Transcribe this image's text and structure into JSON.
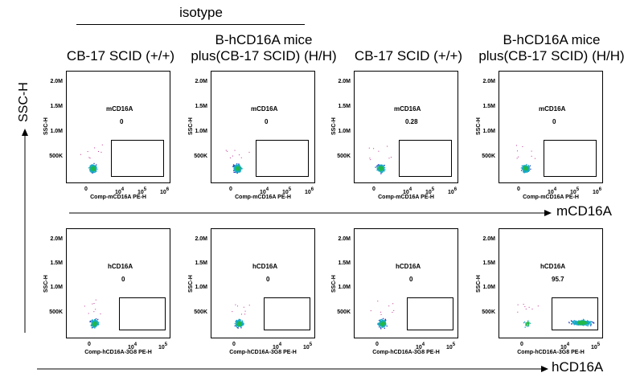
{
  "header": {
    "isotype_label": "isotype",
    "columns": [
      {
        "line1": "",
        "line2": "CB-17 SCID (+/+)"
      },
      {
        "line1": "B-hCD16A mice",
        "line2": "plus(CB-17 SCID)  (H/H)"
      },
      {
        "line1": "",
        "line2": "CB-17 SCID (+/+)"
      },
      {
        "line1": "B-hCD16A mice",
        "line2": "plus(CB-17 SCID)  (H/H)"
      }
    ]
  },
  "axes": {
    "y_title": "SSC-H",
    "row1_x_title": "mCD16A",
    "row2_x_title": "hCD16A"
  },
  "chart_data": [
    {
      "type": "scatter",
      "row": 1,
      "col": 1,
      "gate_name": "mCD16A",
      "gate_value": "0",
      "xlabel": "Comp-mCD16A PE-H",
      "ylabel": "SSC-H",
      "y_ticks": [
        "500K",
        "1.0M",
        "1.5M",
        "2.0M"
      ],
      "x_ticks": [
        {
          "b": "0",
          "e": ""
        },
        {
          "b": "10",
          "e": "4"
        },
        {
          "b": "10",
          "e": "5"
        },
        {
          "b": "10",
          "e": "6"
        }
      ],
      "gate_percent": 0
    },
    {
      "type": "scatter",
      "row": 1,
      "col": 2,
      "gate_name": "mCD16A",
      "gate_value": "0",
      "xlabel": "Comp-mCD16A PE-H",
      "ylabel": "SSC-H",
      "y_ticks": [
        "500K",
        "1.0M",
        "1.5M",
        "2.0M"
      ],
      "x_ticks": [
        {
          "b": "0",
          "e": ""
        },
        {
          "b": "10",
          "e": "4"
        },
        {
          "b": "10",
          "e": "5"
        },
        {
          "b": "10",
          "e": "6"
        }
      ],
      "gate_percent": 0
    },
    {
      "type": "scatter",
      "row": 1,
      "col": 3,
      "gate_name": "mCD16A",
      "gate_value": "0.28",
      "xlabel": "Comp-mCD16A PE-H",
      "ylabel": "SSC-H",
      "y_ticks": [
        "500K",
        "1.0M",
        "1.5M",
        "2.0M"
      ],
      "x_ticks": [
        {
          "b": "0",
          "e": ""
        },
        {
          "b": "10",
          "e": "4"
        },
        {
          "b": "10",
          "e": "5"
        },
        {
          "b": "10",
          "e": "6"
        }
      ],
      "gate_percent": 0.28
    },
    {
      "type": "scatter",
      "row": 1,
      "col": 4,
      "gate_name": "mCD16A",
      "gate_value": "0",
      "xlabel": "Comp-mCD16A PE-H",
      "ylabel": "SSC-H",
      "y_ticks": [
        "500K",
        "1.0M",
        "1.5M",
        "2.0M"
      ],
      "x_ticks": [
        {
          "b": "0",
          "e": ""
        },
        {
          "b": "10",
          "e": "4"
        },
        {
          "b": "10",
          "e": "5"
        },
        {
          "b": "10",
          "e": "6"
        }
      ],
      "gate_percent": 0
    },
    {
      "type": "scatter",
      "row": 2,
      "col": 1,
      "gate_name": "hCD16A",
      "gate_value": "0",
      "xlabel": "Comp-hCD16A-3G8 PE-H",
      "ylabel": "SSC-H",
      "y_ticks": [
        "500K",
        "1.0M",
        "1.5M",
        "2.0M"
      ],
      "x_ticks": [
        {
          "b": "0",
          "e": ""
        },
        {
          "b": "10",
          "e": "4"
        },
        {
          "b": "10",
          "e": "5"
        }
      ],
      "gate_percent": 0
    },
    {
      "type": "scatter",
      "row": 2,
      "col": 2,
      "gate_name": "hCD16A",
      "gate_value": "0",
      "xlabel": "Comp-hCD16A-3G8 PE-H",
      "ylabel": "SSC-H",
      "y_ticks": [
        "500K",
        "1.0M",
        "1.5M",
        "2.0M"
      ],
      "x_ticks": [
        {
          "b": "0",
          "e": ""
        },
        {
          "b": "10",
          "e": "4"
        },
        {
          "b": "10",
          "e": "5"
        }
      ],
      "gate_percent": 0
    },
    {
      "type": "scatter",
      "row": 2,
      "col": 3,
      "gate_name": "hCD16A",
      "gate_value": "0",
      "xlabel": "Comp-hCD16A-3G8 PE-H",
      "ylabel": "SSC-H",
      "y_ticks": [
        "500K",
        "1.0M",
        "1.5M",
        "2.0M"
      ],
      "x_ticks": [
        {
          "b": "0",
          "e": ""
        },
        {
          "b": "10",
          "e": "4"
        },
        {
          "b": "10",
          "e": "5"
        }
      ],
      "gate_percent": 0
    },
    {
      "type": "scatter",
      "row": 2,
      "col": 4,
      "gate_name": "hCD16A",
      "gate_value": "95.7",
      "xlabel": "Comp-hCD16A-3G8 PE-H",
      "ylabel": "SSC-H",
      "y_ticks": [
        "500K",
        "1.0M",
        "1.5M",
        "2.0M"
      ],
      "x_ticks": [
        {
          "b": "0",
          "e": ""
        },
        {
          "b": "10",
          "e": "4"
        },
        {
          "b": "10",
          "e": "5"
        }
      ],
      "gate_percent": 95.7
    }
  ],
  "colors": {
    "dot_low": "#1f3dbf",
    "dot_mid": "#17a8c8",
    "dot_high": "#22b84a",
    "dot_rare": "#c03090"
  }
}
